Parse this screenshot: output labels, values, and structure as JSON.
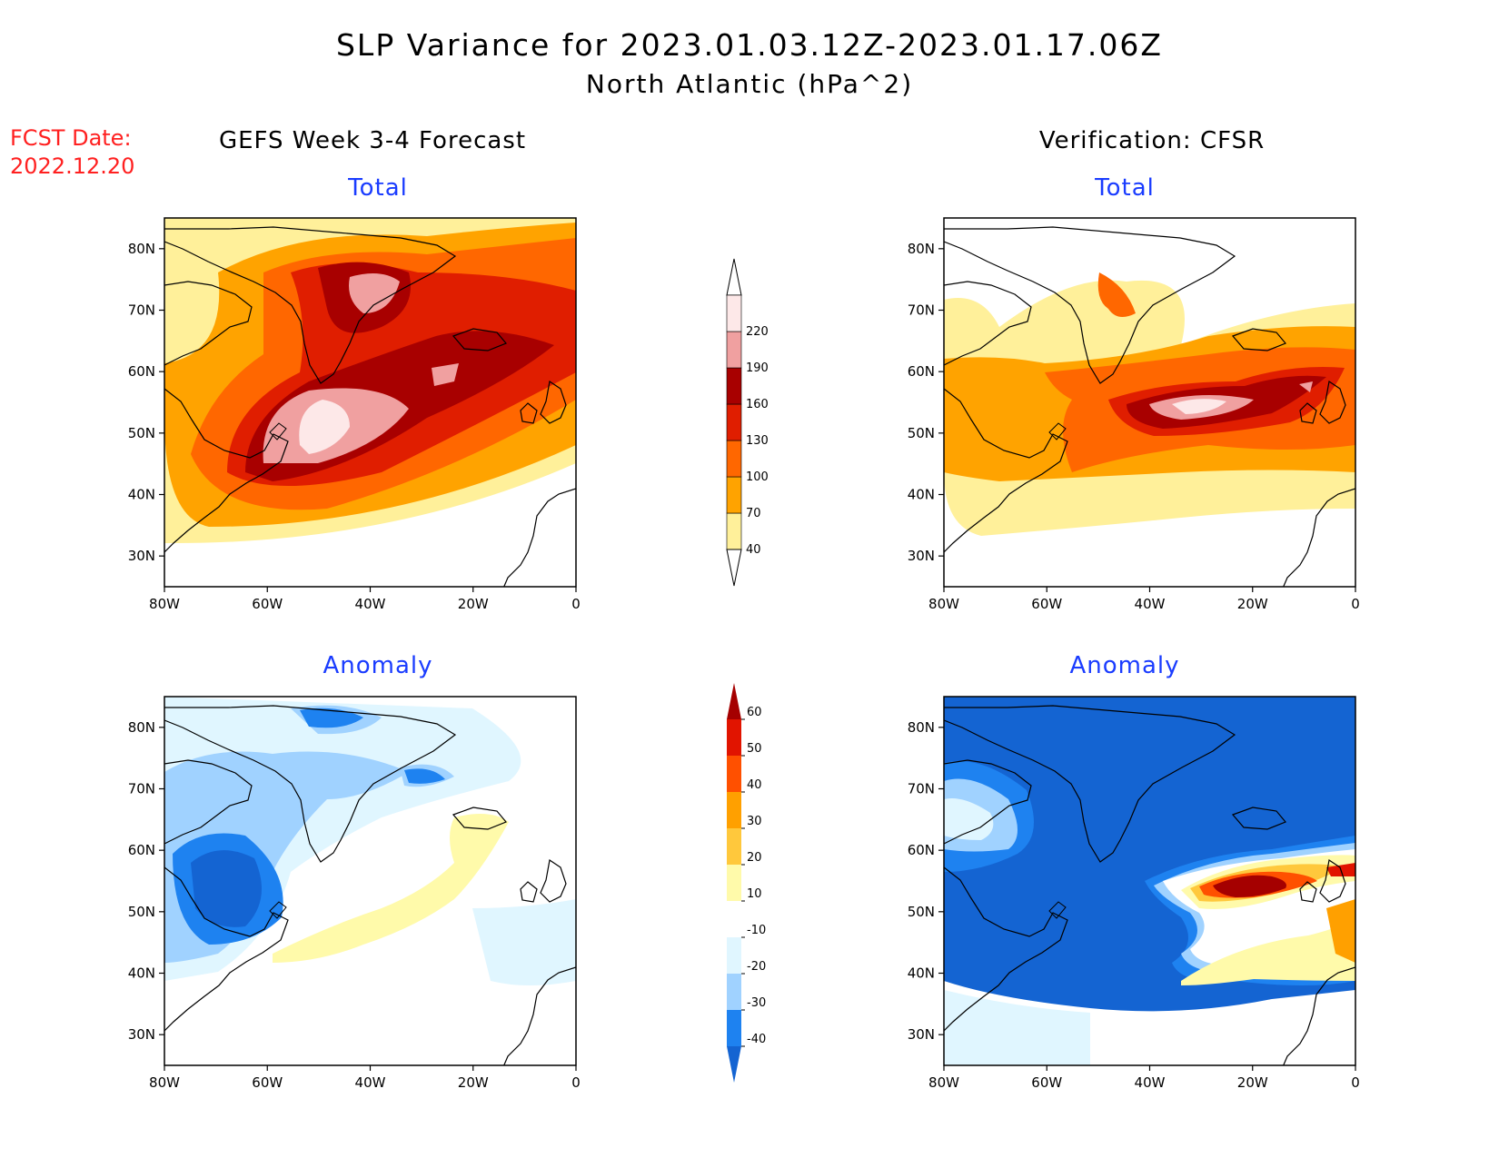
{
  "title": "SLP Variance for 2023.01.03.12Z-2023.01.17.06Z",
  "subtitle": "North Atlantic (hPa^2)",
  "fcst_label": "FCST Date:",
  "fcst_date": "2022.12.20",
  "left_column_title": "GEFS Week 3-4 Forecast",
  "right_column_title": "Verification: CFSR",
  "panel_subtitles": {
    "top_left": "Total",
    "top_right": "Total",
    "bottom_left": "Anomaly",
    "bottom_right": "Anomaly"
  },
  "axes": {
    "lat_labels": [
      "80N",
      "70N",
      "60N",
      "50N",
      "40N",
      "30N"
    ],
    "lon_labels": [
      "80W",
      "60W",
      "40W",
      "20W",
      "0"
    ],
    "lat_values": [
      80,
      70,
      60,
      50,
      40,
      30
    ],
    "lon_values": [
      -80,
      -60,
      -40,
      -20,
      0
    ],
    "lat_range": [
      25,
      85
    ],
    "lon_range": [
      -80,
      0
    ]
  },
  "total_colorbar": {
    "levels": [
      "40",
      "70",
      "100",
      "130",
      "160",
      "190",
      "220"
    ],
    "colors": [
      "#fff09a",
      "#ffa300",
      "#ff6700",
      "#e01e00",
      "#a80000",
      "#f0a0a0",
      "#fde8e8"
    ]
  },
  "anomaly_colorbar": {
    "levels": [
      "-40",
      "-30",
      "-20",
      "-10",
      "10",
      "20",
      "30",
      "40",
      "50",
      "60"
    ],
    "colors": [
      "#1464d2",
      "#1e82f0",
      "#a0d2ff",
      "#e0f6ff",
      "#ffffff",
      "#fffaaa",
      "#ffc83c",
      "#ffa000",
      "#ff5000",
      "#e11400",
      "#a50000"
    ]
  }
}
